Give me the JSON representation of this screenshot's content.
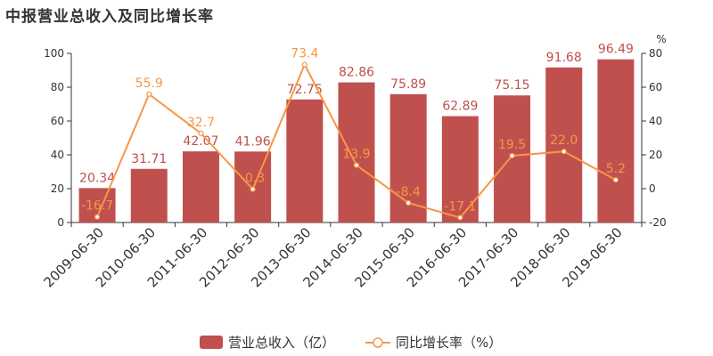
{
  "title": "中报营业总收入及同比增长率",
  "colors": {
    "bar": "#c0504d",
    "line": "#f79646",
    "axis": "#333333"
  },
  "chart_data": {
    "type": "bar",
    "title": "中报营业总收入及同比增长率",
    "categories": [
      "2009-06-30",
      "2010-06-30",
      "2011-06-30",
      "2012-06-30",
      "2013-06-30",
      "2014-06-30",
      "2015-06-30",
      "2016-06-30",
      "2017-06-30",
      "2018-06-30",
      "2019-06-30"
    ],
    "series": [
      {
        "name": "营业总收入（亿）",
        "type": "bar",
        "axis": "left",
        "values": [
          20.34,
          31.71,
          42.07,
          41.96,
          72.75,
          82.86,
          75.89,
          62.89,
          75.15,
          91.68,
          96.49
        ],
        "labels": [
          "20.34",
          "31.71",
          "42.07",
          "41.96",
          "72.75",
          "82.86",
          "75.89",
          "62.89",
          "75.15",
          "91.68",
          "96.49"
        ]
      },
      {
        "name": "同比增长率（%）",
        "type": "line",
        "axis": "right",
        "values": [
          -16.7,
          55.9,
          32.7,
          -0.3,
          73.4,
          13.9,
          -8.4,
          -17.1,
          19.5,
          22.0,
          5.2
        ],
        "labels": [
          "-16.7",
          "55.9",
          "32.7",
          "-0.3",
          "73.4",
          "13.9",
          "-8.4",
          "-17.1",
          "19.5",
          "22.0",
          "5.2"
        ]
      }
    ],
    "ylim_left": [
      0,
      100
    ],
    "yticks_left": [
      "0",
      "20",
      "40",
      "60",
      "80",
      "100"
    ],
    "ylim_right": [
      -20,
      80
    ],
    "yticks_right": [
      "-20",
      "0",
      "20",
      "40",
      "60",
      "80"
    ],
    "ylabel_right": "%",
    "grid": false,
    "legend": "bottom"
  }
}
